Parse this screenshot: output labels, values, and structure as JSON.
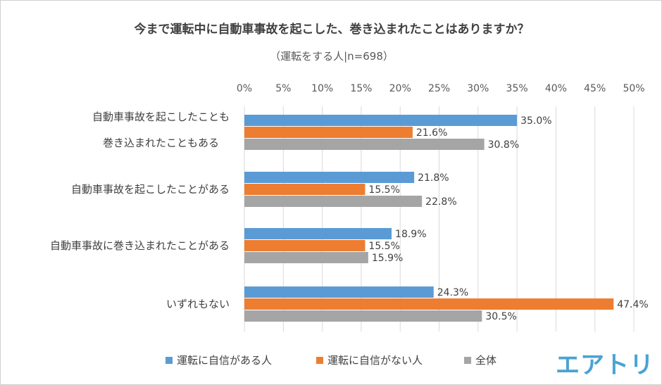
{
  "chart_data": {
    "type": "bar",
    "orientation": "horizontal",
    "title": "今まで運転中に自動車事故を起こした、巻き込まれたことはありますか？",
    "subtitle": "（運転をする人|n=698）",
    "categories": [
      [
        "自動車事故を起こしたことも",
        "巻き込まれたこともある"
      ],
      [
        "自動車事故を起こしたことがある"
      ],
      [
        "自動車事故に巻き込まれたことがある"
      ],
      [
        "いずれもない"
      ]
    ],
    "series": [
      {
        "name": "運転に自信がある人",
        "color": "#5B9BD5",
        "values": [
          35.0,
          21.8,
          18.9,
          24.3
        ]
      },
      {
        "name": "運転に自信がない人",
        "color": "#ED7D31",
        "values": [
          21.6,
          15.5,
          15.5,
          47.4
        ]
      },
      {
        "name": "全体",
        "color": "#A5A5A5",
        "values": [
          30.8,
          22.8,
          15.9,
          30.5
        ]
      }
    ],
    "xlim": [
      0,
      50
    ],
    "xticks": [
      "0%",
      "5%",
      "10%",
      "15%",
      "20%",
      "25%",
      "30%",
      "35%",
      "40%",
      "45%",
      "50%"
    ],
    "grid": true,
    "axis_position": "top",
    "legend_position": "bottom"
  },
  "logo": "エアトリ"
}
